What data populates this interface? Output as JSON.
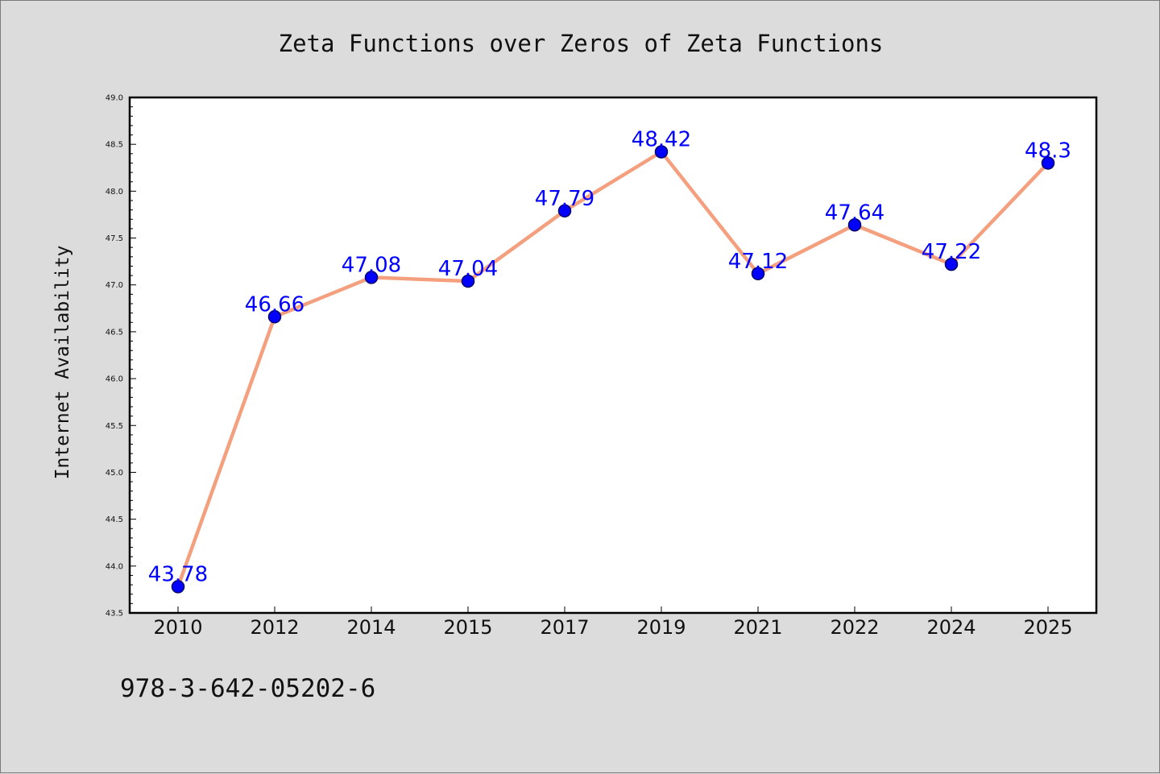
{
  "chart_data": {
    "type": "line",
    "title": "Zeta Functions over Zeros of Zeta Functions",
    "xlabel": "",
    "ylabel": "Internet Availability",
    "categories": [
      "2010",
      "2012",
      "2014",
      "2015",
      "2017",
      "2019",
      "2021",
      "2022",
      "2024",
      "2025"
    ],
    "values": [
      43.78,
      46.66,
      47.08,
      47.04,
      47.79,
      48.42,
      47.12,
      47.64,
      47.22,
      48.3
    ],
    "data_labels": [
      "43.78",
      "46.66",
      "47.08",
      "47.04",
      "47.79",
      "48.42",
      "47.12",
      "47.64",
      "47.22",
      "48.3"
    ],
    "ylim": [
      43.5,
      49.0
    ],
    "yticks": [
      "43.5",
      "44.0",
      "44.5",
      "45.0",
      "45.5",
      "46.0",
      "46.5",
      "47.0",
      "47.5",
      "48.0",
      "48.5",
      "49.0"
    ],
    "grid": false,
    "legend": "none",
    "line_color": "#f4a07f",
    "marker_color": "#0000ff"
  },
  "annotation": "978-3-642-05202-6"
}
